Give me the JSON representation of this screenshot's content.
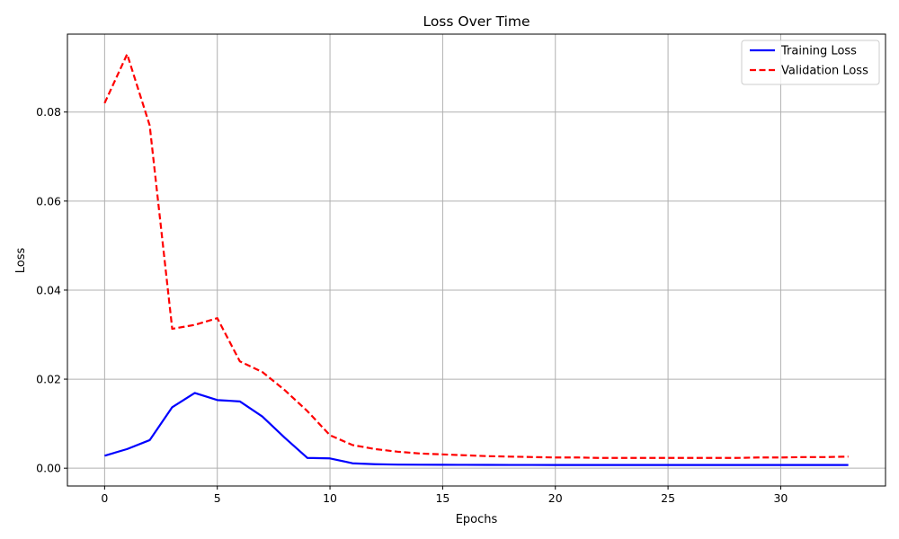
{
  "chart_data": {
    "type": "line",
    "title": "Loss Over Time",
    "xlabel": "Epochs",
    "ylabel": "Loss",
    "xlim": [
      -1.65,
      34.65
    ],
    "ylim": [
      -0.004,
      0.0975
    ],
    "xticks": [
      0,
      5,
      10,
      15,
      20,
      25,
      30
    ],
    "xtick_labels": [
      "0",
      "5",
      "10",
      "15",
      "20",
      "25",
      "30"
    ],
    "yticks": [
      0.0,
      0.02,
      0.04,
      0.06,
      0.08
    ],
    "ytick_labels": [
      "0.00",
      "0.02",
      "0.04",
      "0.06",
      "0.08"
    ],
    "grid": true,
    "legend_position": "top-right",
    "x": [
      0,
      1,
      2,
      3,
      4,
      5,
      6,
      7,
      8,
      9,
      10,
      11,
      12,
      13,
      14,
      15,
      16,
      17,
      18,
      19,
      20,
      21,
      22,
      23,
      24,
      25,
      26,
      27,
      28,
      29,
      30,
      31,
      32,
      33
    ],
    "series": [
      {
        "name": "Training Loss",
        "color": "#0000ff",
        "line_style": "solid",
        "values": [
          0.0028,
          0.0043,
          0.0063,
          0.0137,
          0.0169,
          0.0153,
          0.015,
          0.0116,
          0.0068,
          0.0023,
          0.0022,
          0.0011,
          0.0009,
          0.0008,
          0.00078,
          0.00076,
          0.00075,
          0.00074,
          0.00073,
          0.00073,
          0.00072,
          0.00072,
          0.00072,
          0.00072,
          0.00072,
          0.00072,
          0.00072,
          0.00072,
          0.00072,
          0.00072,
          0.00072,
          0.00072,
          0.00072,
          0.00072
        ]
      },
      {
        "name": "Validation Loss",
        "color": "#ff0000",
        "line_style": "dashed",
        "values": [
          0.082,
          0.093,
          0.077,
          0.0313,
          0.0322,
          0.0337,
          0.024,
          0.0216,
          0.0175,
          0.0128,
          0.0074,
          0.0052,
          0.0043,
          0.0037,
          0.0033,
          0.0031,
          0.0029,
          0.0027,
          0.0026,
          0.0025,
          0.0024,
          0.0024,
          0.0023,
          0.0023,
          0.0023,
          0.0023,
          0.0023,
          0.0023,
          0.0023,
          0.0024,
          0.0024,
          0.0025,
          0.0025,
          0.0026
        ]
      }
    ]
  }
}
